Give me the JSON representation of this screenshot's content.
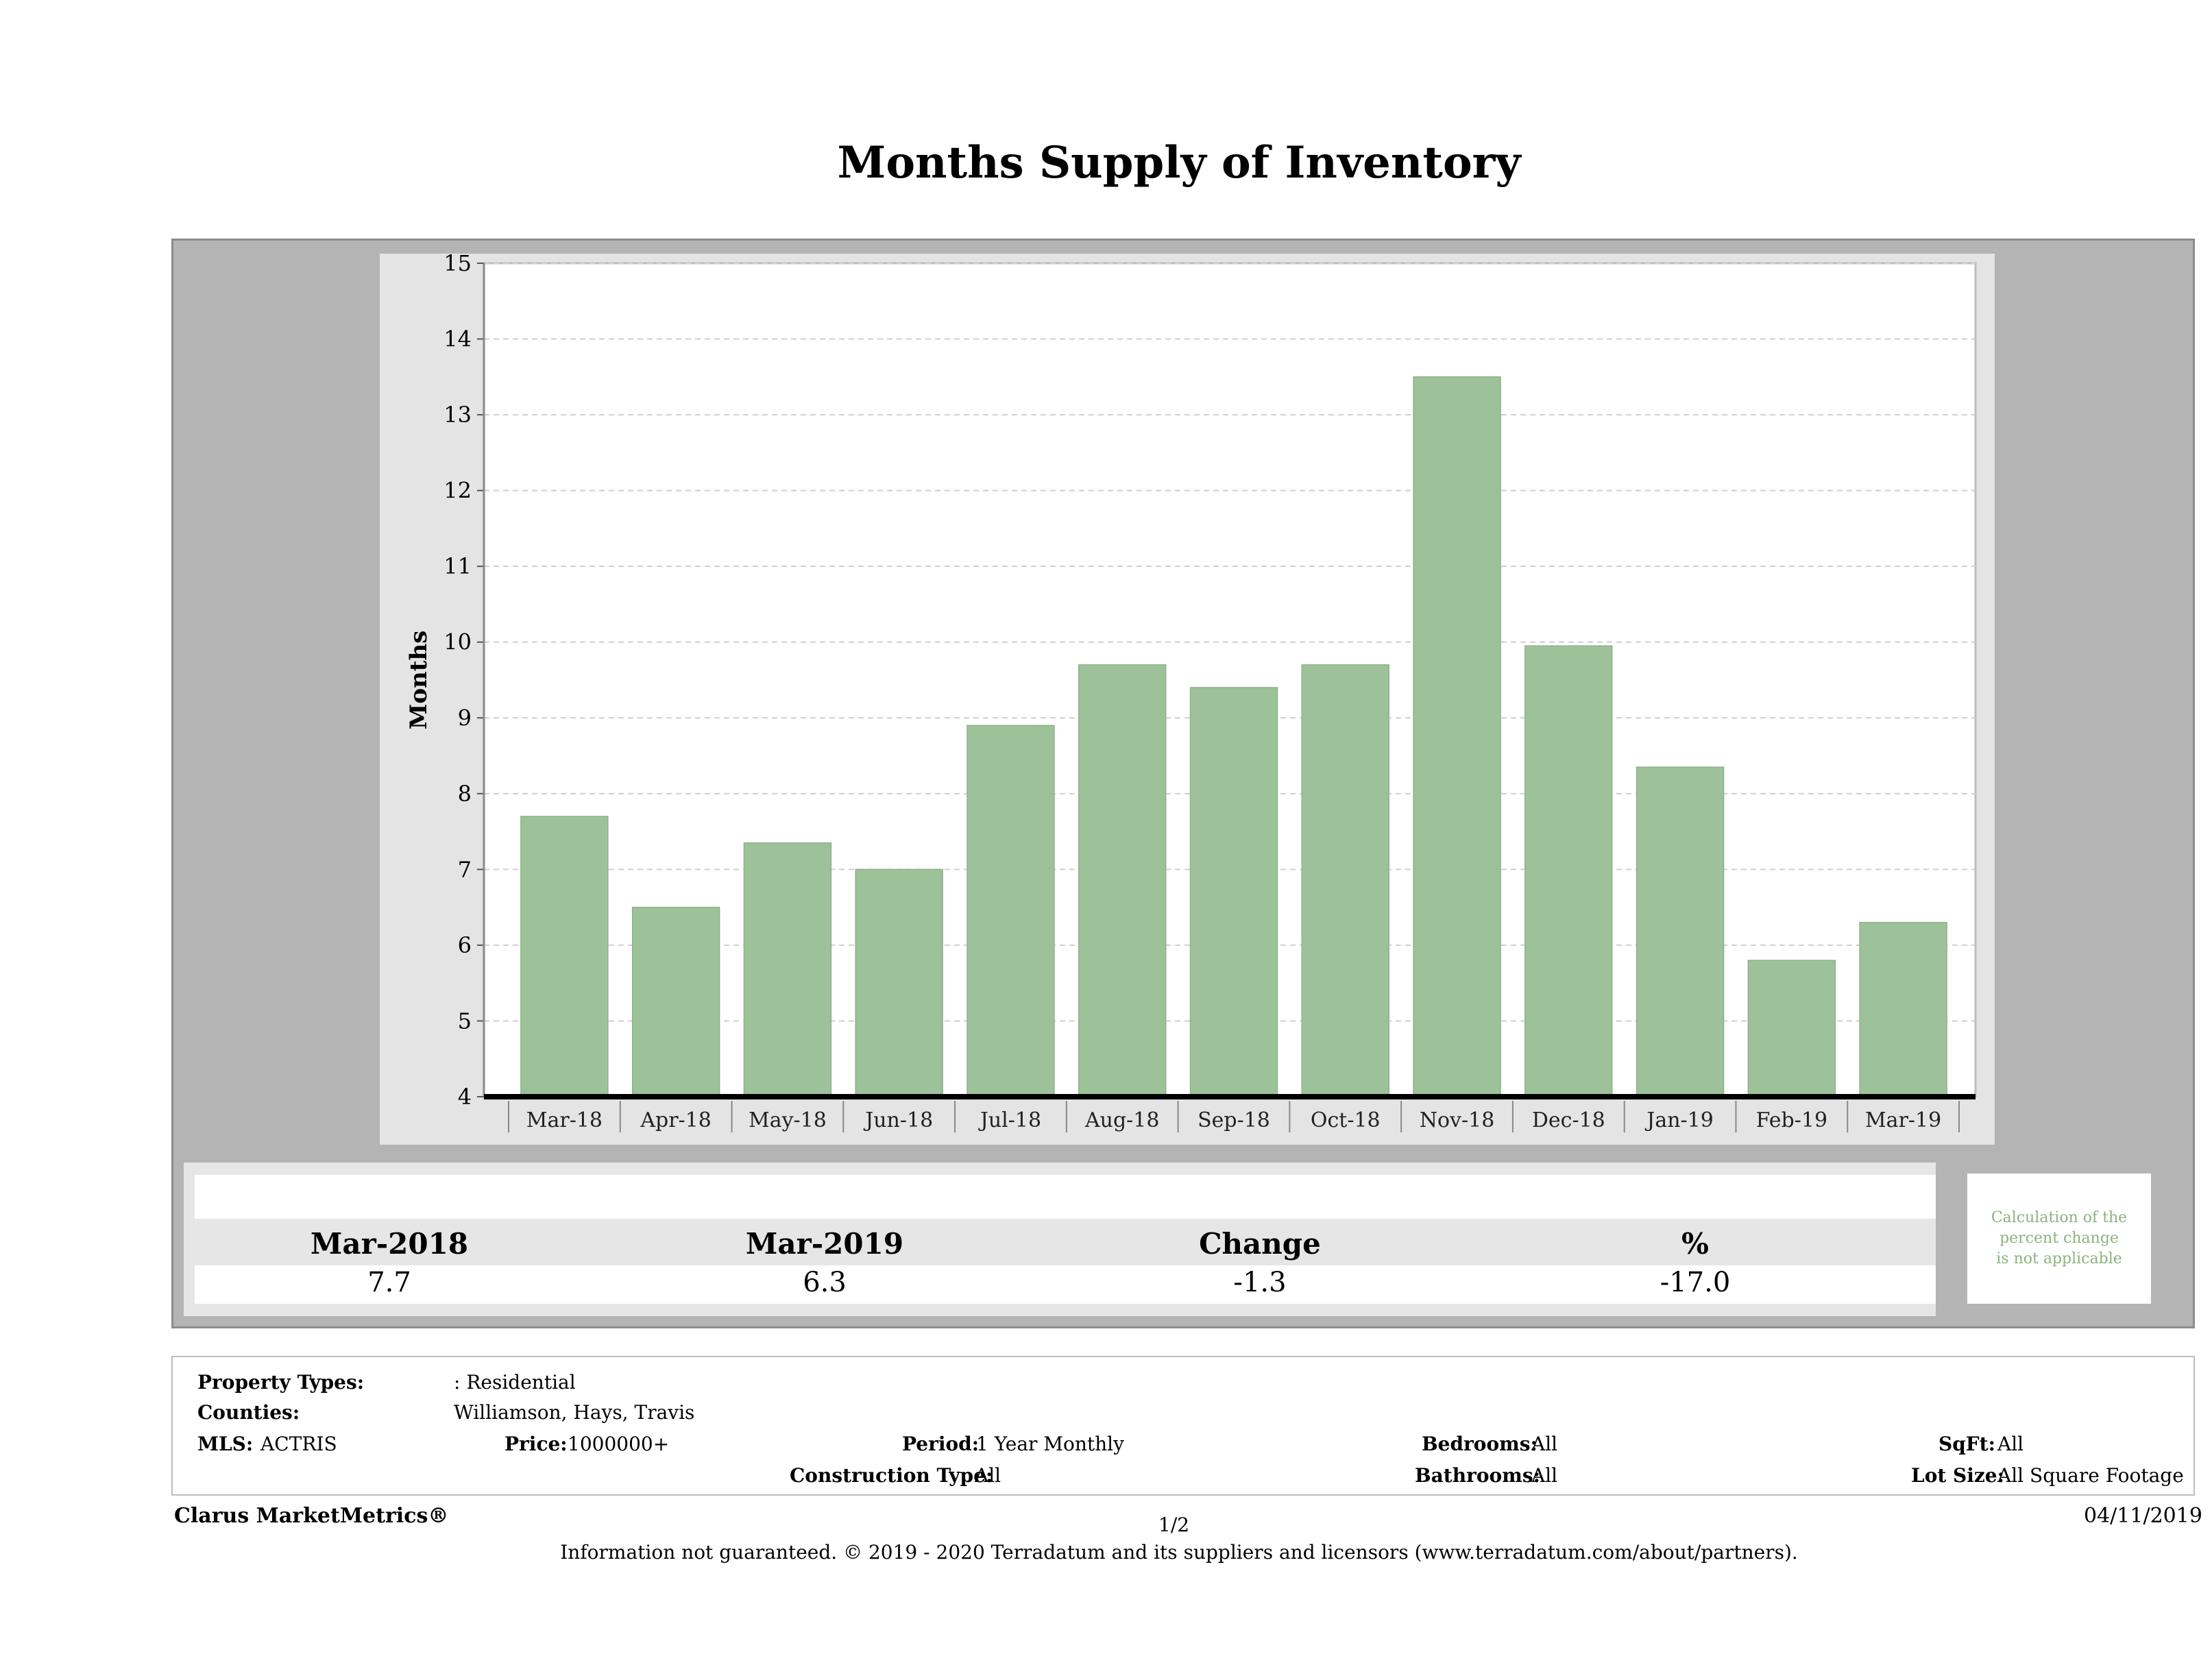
{
  "report_title": "Months Supply of Inventory",
  "chart_data": {
    "type": "bar",
    "title": "Months Supply of Inventory",
    "ylabel": "Months",
    "xlabel": "",
    "categories": [
      "Mar-18",
      "Apr-18",
      "May-18",
      "Jun-18",
      "Jul-18",
      "Aug-18",
      "Sep-18",
      "Oct-18",
      "Nov-18",
      "Dec-18",
      "Jan-19",
      "Feb-19",
      "Mar-19"
    ],
    "values": [
      7.7,
      6.5,
      7.35,
      7.0,
      8.9,
      9.7,
      9.4,
      9.7,
      13.5,
      9.95,
      8.35,
      5.8,
      6.3
    ],
    "ylim": [
      4,
      15
    ],
    "yticks": [
      4,
      5,
      6,
      7,
      8,
      9,
      10,
      11,
      12,
      13,
      14,
      15
    ],
    "grid": true,
    "bar_color": "#9dc29a"
  },
  "summary": {
    "col1_label": "Mar-2018",
    "col2_label": "Mar-2019",
    "col3_label": "Change",
    "col4_label": "%",
    "col1_value": "7.7",
    "col2_value": "6.3",
    "col3_value": "-1.3",
    "col4_value": "-17.0",
    "note_line1": "Calculation of the",
    "note_line2": "percent change",
    "note_line3": "is not applicable"
  },
  "filters": {
    "property_types_label": "Property Types:",
    "property_types_value": ": Residential",
    "counties_label": "Counties:",
    "counties_value": "Williamson, Hays, Travis",
    "mls_label": "MLS:",
    "mls_value": "ACTRIS",
    "price_label": "Price:",
    "price_value": "1000000+",
    "period_label": "Period:",
    "period_value": "1 Year Monthly",
    "construction_label": "Construction Type:",
    "construction_value": "All",
    "bedrooms_label": "Bedrooms:",
    "bedrooms_value": "All",
    "bathrooms_label": "Bathrooms:",
    "bathrooms_value": "All",
    "sqft_label": "SqFt:",
    "sqft_value": "All",
    "lot_label": "Lot Size:",
    "lot_value": "All Square Footage"
  },
  "footer": {
    "brand": "Clarus MarketMetrics®",
    "page": "1/2",
    "date": "04/11/2019",
    "disclaimer": "Information not guaranteed. © 2019 - 2020 Terradatum and its suppliers and licensors (www.terradatum.com/about/partners)."
  }
}
